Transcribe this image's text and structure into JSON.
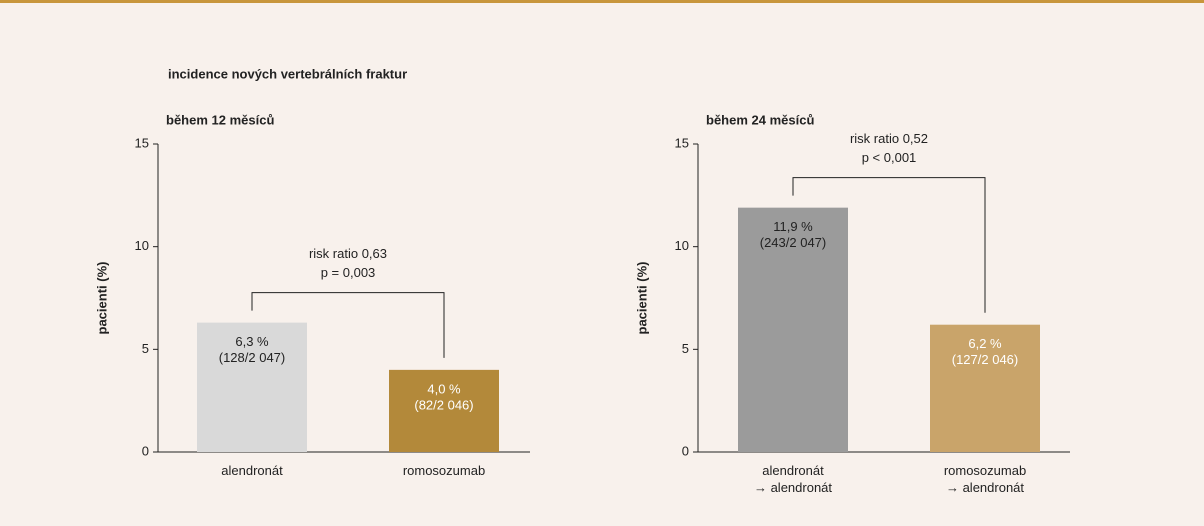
{
  "title": "incidence nových vertebrálních fraktur",
  "chart_data": [
    {
      "type": "bar",
      "title": "během 12 měsíců",
      "y_label": "pacienti (%)",
      "categories": [
        "alendronát",
        "romosozumab"
      ],
      "values": [
        6.3,
        4.0
      ],
      "value_labels": [
        "6,3 %",
        "4,0 %"
      ],
      "counts": [
        "(128/2 047)",
        "(82/2 046)"
      ],
      "colors": [
        "#d9d9d9",
        "#b3893a"
      ],
      "label_colors": [
        "#222222",
        "#ffffff"
      ],
      "annotation": [
        "risk ratio 0,63",
        "p = 0,003"
      ],
      "ylim": [
        0,
        15
      ],
      "yticks": [
        0,
        5,
        10,
        15
      ]
    },
    {
      "type": "bar",
      "title": "během 24 měsíců",
      "y_label": "pacienti (%)",
      "categories": [
        "alendronát\n→ alendronát",
        "romosozumab\n→ alendronát"
      ],
      "values": [
        11.9,
        6.2
      ],
      "value_labels": [
        "11,9 %",
        "6,2 %"
      ],
      "counts": [
        "(243/2 047)",
        "(127/2 046)"
      ],
      "colors": [
        "#9b9b9b",
        "#c9a46a"
      ],
      "label_colors": [
        "#222222",
        "#ffffff"
      ],
      "annotation": [
        "risk ratio 0,52",
        "p < 0,001"
      ],
      "ylim": [
        0,
        15
      ],
      "yticks": [
        0,
        5,
        10,
        15
      ]
    }
  ]
}
